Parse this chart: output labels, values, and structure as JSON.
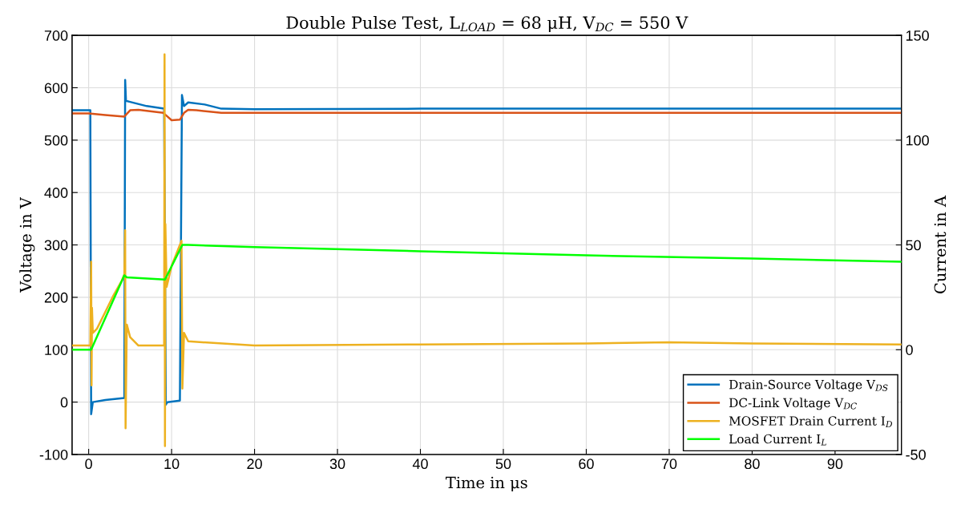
{
  "chart_data": {
    "type": "line",
    "title": "Double Pulse Test, L$_{LOAD}$ = 68 μH, V$_{DC}$ = 550 V",
    "xlabel": "Time in μs",
    "ylabel": "Voltage in V",
    "y2label": "Current in A",
    "xlim": [
      -2,
      98
    ],
    "xticks": [
      0,
      10,
      20,
      30,
      40,
      50,
      60,
      70,
      80,
      90
    ],
    "ylim": [
      -100,
      700
    ],
    "yticks": [
      -100,
      0,
      100,
      200,
      300,
      400,
      500,
      600,
      700
    ],
    "y2lim": [
      -50,
      150
    ],
    "y2ticks": [
      -50,
      0,
      50,
      100,
      150
    ],
    "grid": true,
    "legend": "bottom right",
    "line_style": "solid",
    "marker": "none",
    "series": [
      {
        "name": "Drain-Source Voltage V$_{DS}$",
        "color": "#0072bd",
        "x": [
          -2,
          0.2,
          0.3,
          0.5,
          2,
          4.3,
          4.4,
          4.5,
          5,
          7,
          9.1,
          9.3,
          9.5,
          11.0,
          11.25,
          11.5,
          12,
          14,
          16,
          20,
          40,
          60,
          80,
          98
        ],
        "values": [
          557,
          557,
          -23,
          0,
          4,
          8,
          615,
          575,
          573,
          565,
          560,
          -5,
          0,
          3,
          586,
          565,
          572,
          568,
          560,
          559,
          560,
          560,
          560,
          560
        ]
      },
      {
        "name": "DC-Link Voltage V$_{DC}$",
        "color": "#d95319",
        "x": [
          -2,
          0,
          2,
          4.3,
          5,
          6,
          9,
          9.5,
          10,
          11,
          11.5,
          12,
          13,
          16,
          20,
          98
        ],
        "values": [
          551,
          551,
          548,
          545,
          557,
          558,
          552,
          545,
          538,
          539,
          552,
          558,
          557,
          552,
          552,
          552
        ]
      },
      {
        "name": "MOSFET Drain Current I$_{D}$",
        "color": "#edb120",
        "axis": "y2",
        "x": [
          -2,
          0.2,
          0.3,
          0.35,
          0.4,
          0.5,
          1,
          2,
          3,
          4,
          4.3,
          4.4,
          4.45,
          4.6,
          5,
          6,
          9.1,
          9.15,
          9.2,
          9.25,
          9.4,
          10,
          11,
          11.2,
          11.3,
          11.5,
          12,
          20,
          40,
          60,
          70,
          80,
          98
        ],
        "values": [
          2,
          2,
          42,
          -17,
          20,
          8,
          10,
          18,
          26,
          33,
          36,
          57,
          -37.5,
          12,
          6,
          2,
          2,
          141,
          -46,
          60,
          30,
          40,
          50,
          52,
          -18.5,
          8,
          4,
          2,
          2.5,
          3,
          3.5,
          3,
          2.5
        ]
      },
      {
        "name": "Load Current I$_{L}$",
        "color": "#00ff00",
        "axis": "y2",
        "x": [
          -2,
          0.3,
          4.3,
          4.6,
          9.2,
          11.3,
          12,
          20,
          40,
          60,
          80,
          98
        ],
        "values": [
          0,
          0,
          35.5,
          34.5,
          33.5,
          50,
          50,
          49,
          47,
          45,
          43.5,
          42
        ]
      }
    ]
  }
}
